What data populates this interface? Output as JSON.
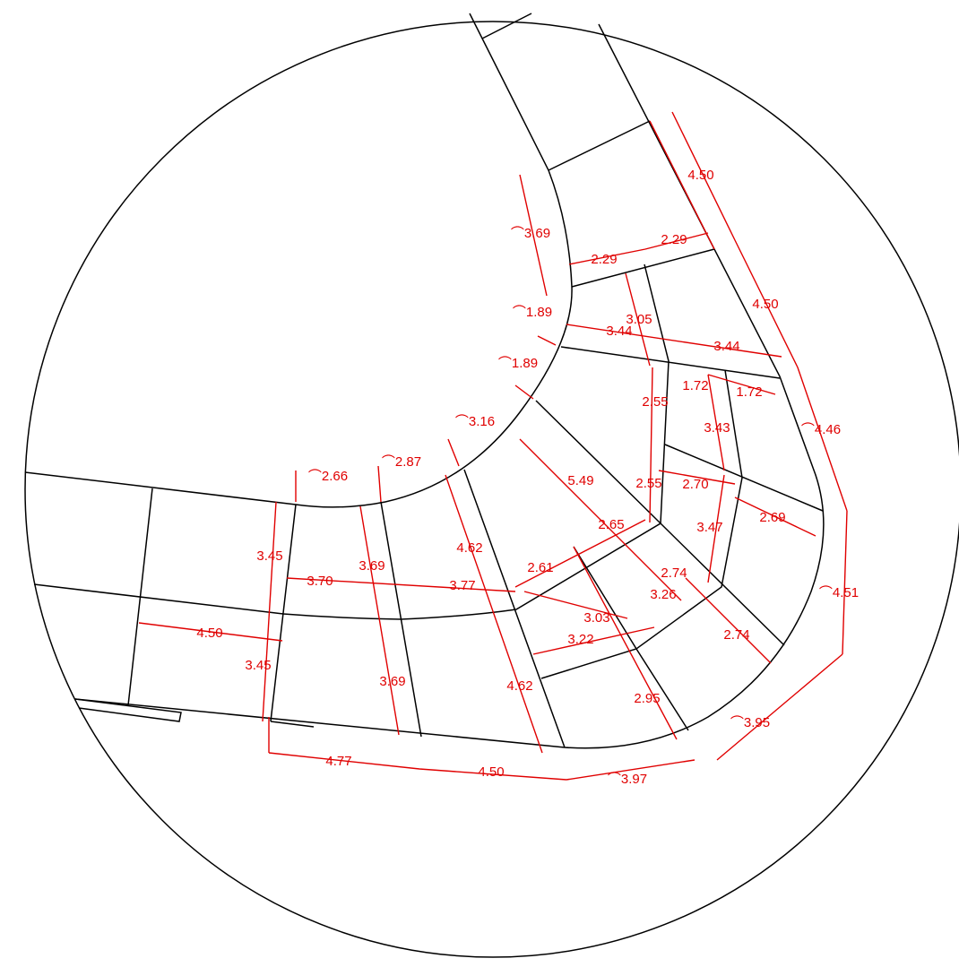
{
  "dimensions": [
    "4.50",
    "⌒3.69",
    "2.29",
    "2.29",
    "4.50",
    "⌒1.89",
    "3.05",
    "3.44",
    "3.44",
    "⌒1.89",
    "1.72",
    "1.72",
    "2.55",
    "⌒4.46",
    "3.43",
    "⌒3.16",
    "⌒2.87",
    "⌒2.66",
    "5.49",
    "2.55",
    "2.70",
    "2.69",
    "2.65",
    "3.47",
    "3.45",
    "3.69",
    "4.62",
    "2.61",
    "3.70",
    "3.77",
    "2.74",
    "⌒4.51",
    "3.26",
    "3.03",
    "4.50",
    "3.22",
    "2.74",
    "3.45",
    "3.69",
    "4.62",
    "2.95",
    "⌒3.95",
    "4.77",
    "4.50",
    "⌒3.97"
  ]
}
